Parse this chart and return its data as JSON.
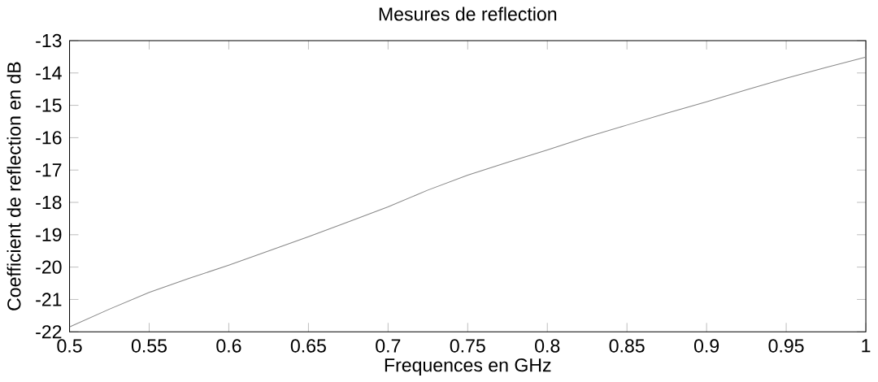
{
  "chart_data": {
    "type": "line",
    "title": "Mesures de reflection",
    "xlabel": "Frequences en GHz",
    "ylabel": "Coefficient de reflection en dB",
    "x": [
      0.5,
      0.525,
      0.55,
      0.575,
      0.6,
      0.625,
      0.65,
      0.675,
      0.7,
      0.725,
      0.75,
      0.775,
      0.8,
      0.825,
      0.85,
      0.875,
      0.9,
      0.925,
      0.95,
      0.975,
      1.0
    ],
    "series": [
      {
        "color": "#888888",
        "values": [
          -21.85,
          -21.3,
          -20.78,
          -20.35,
          -19.94,
          -19.5,
          -19.06,
          -18.6,
          -18.14,
          -17.62,
          -17.16,
          -16.76,
          -16.38,
          -15.98,
          -15.61,
          -15.24,
          -14.89,
          -14.52,
          -14.16,
          -13.83,
          -13.51
        ]
      }
    ],
    "xlim": [
      0.5,
      1
    ],
    "ylim": [
      -22,
      -13
    ],
    "xticks": [
      0.5,
      0.55,
      0.6,
      0.65,
      0.7,
      0.75,
      0.8,
      0.85,
      0.9,
      0.95,
      1
    ],
    "yticks": [
      -22,
      -21,
      -20,
      -19,
      -18,
      -17,
      -16,
      -15,
      -14,
      -13
    ],
    "grid": false,
    "marker": "none",
    "line_style": "solid"
  }
}
